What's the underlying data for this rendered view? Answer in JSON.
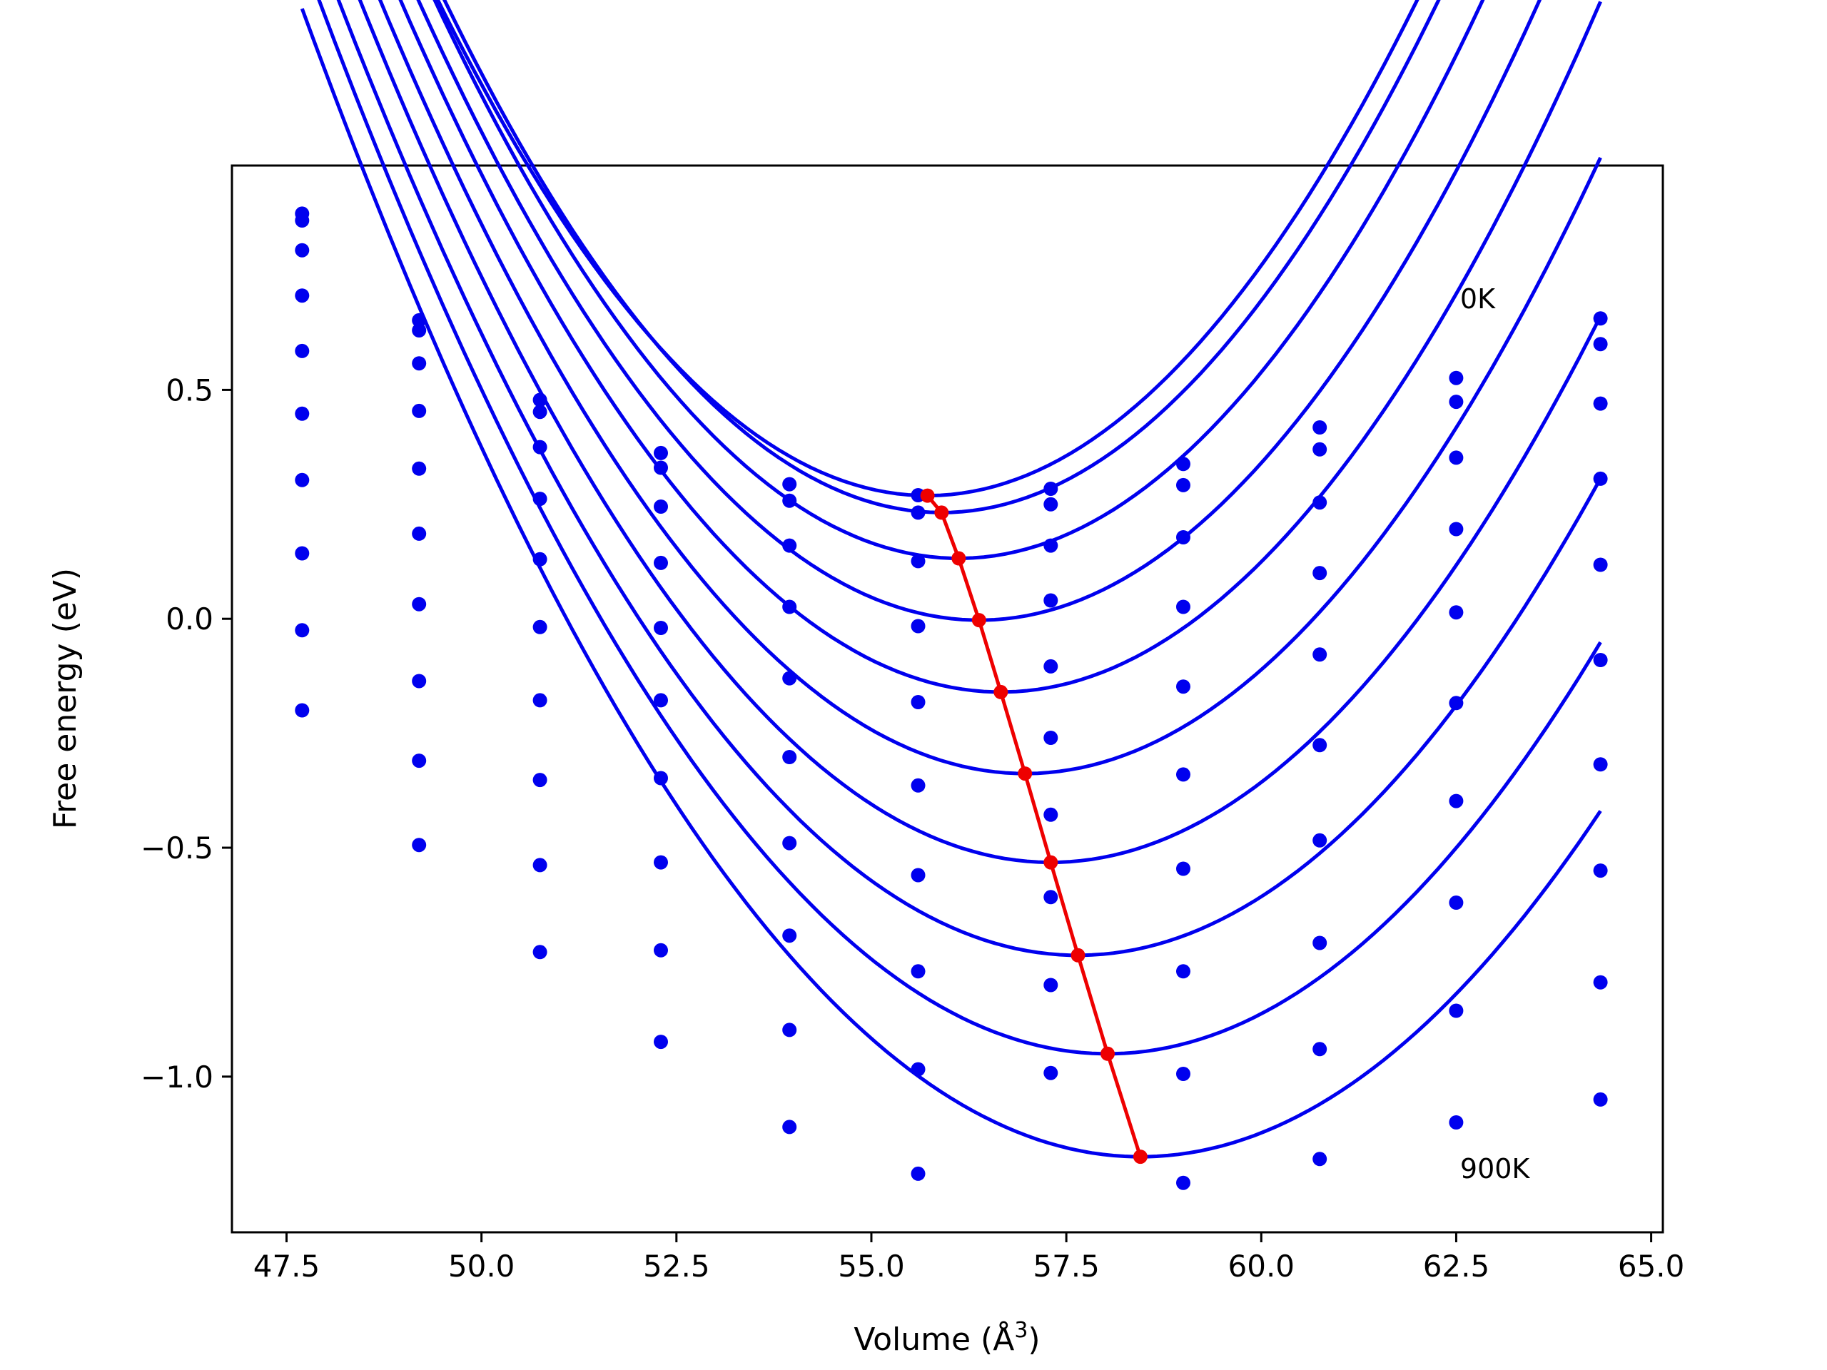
{
  "chart_data": {
    "type": "line",
    "title": "",
    "xlabel": "Volume (Å",
    "xlabel_sup": "3",
    "xlabel_close": ")",
    "ylabel": "Free energy (eV)",
    "xlim": [
      46.8,
      65.15
    ],
    "ylim": [
      -1.34,
      0.99
    ],
    "xticks": [
      {
        "value": 47.5,
        "label": "47.5"
      },
      {
        "value": 50.0,
        "label": "50.0"
      },
      {
        "value": 52.5,
        "label": "52.5"
      },
      {
        "value": 55.0,
        "label": "55.0"
      },
      {
        "value": 57.5,
        "label": "57.5"
      },
      {
        "value": 60.0,
        "label": "60.0"
      },
      {
        "value": 62.5,
        "label": "62.5"
      },
      {
        "value": 65.0,
        "label": "65.0"
      }
    ],
    "yticks": [
      {
        "value": 0.5,
        "label": "0.5"
      },
      {
        "value": 0.0,
        "label": "0.0"
      },
      {
        "value": -0.5,
        "label": "−0.5"
      },
      {
        "value": -1.0,
        "label": "−1.0"
      }
    ],
    "grid": false,
    "legend": "none",
    "annotations": [
      {
        "text": "0K",
        "x": 62.55,
        "y": 0.7
      },
      {
        "text": "900K",
        "x": 62.55,
        "y": -1.2
      }
    ],
    "volumes": [
      47.7,
      49.2,
      50.75,
      52.3,
      53.95,
      55.6,
      57.3,
      59.0,
      60.75,
      62.5,
      64.35
    ],
    "series": [
      {
        "points": [
          0.885,
          0.652,
          0.478,
          0.362,
          0.294,
          0.27,
          0.284,
          0.338,
          0.418,
          0.526,
          0.656
        ],
        "fit": {
          "a": 0.02745,
          "v0": 55.72,
          "e0": 0.269
        }
      },
      {
        "points": [
          0.87,
          0.63,
          0.452,
          0.33,
          0.258,
          0.232,
          0.25,
          0.292,
          0.37,
          0.474,
          0.6
        ],
        "fit": {
          "a": 0.02755,
          "v0": 55.9,
          "e0": 0.232
        }
      },
      {
        "points": [
          0.805,
          0.558,
          0.375,
          0.245,
          0.16,
          0.126,
          0.16,
          0.178,
          0.254,
          0.352,
          0.47
        ],
        "fit": {
          "a": 0.027,
          "v0": 56.12,
          "e0": 0.132
        }
      },
      {
        "points": [
          0.706,
          0.454,
          0.262,
          0.122,
          0.026,
          -0.016,
          0.04,
          0.026,
          0.1,
          0.196,
          0.306
        ],
        "fit": {
          "a": 0.0262,
          "v0": 56.38,
          "e0": -0.003
        }
      },
      {
        "points": [
          0.585,
          0.328,
          0.13,
          -0.02,
          -0.13,
          -0.182,
          -0.104,
          -0.148,
          -0.078,
          0.014,
          0.118
        ],
        "fit": {
          "a": 0.0255,
          "v0": 56.66,
          "e0": -0.16
        }
      },
      {
        "points": [
          0.448,
          0.186,
          -0.018,
          -0.178,
          -0.302,
          -0.364,
          -0.26,
          -0.34,
          -0.276,
          -0.184,
          -0.09
        ],
        "fit": {
          "a": 0.0247,
          "v0": 56.97,
          "e0": -0.338
        }
      },
      {
        "points": [
          0.303,
          0.032,
          -0.178,
          -0.348,
          -0.49,
          -0.56,
          -0.428,
          -0.546,
          -0.484,
          -0.398,
          -0.318
        ],
        "fit": {
          "a": 0.024,
          "v0": 57.3,
          "e0": -0.532
        }
      },
      {
        "points": [
          0.143,
          -0.136,
          -0.352,
          -0.532,
          -0.692,
          -0.77,
          -0.608,
          -0.77,
          -0.708,
          -0.62,
          -0.55
        ],
        "fit": {
          "a": 0.0232,
          "v0": 57.65,
          "e0": -0.735
        }
      },
      {
        "points": [
          -0.025,
          -0.31,
          -0.538,
          -0.724,
          -0.898,
          -0.984,
          -0.8,
          -0.994,
          -0.94,
          -0.856,
          -0.794
        ],
        "fit": {
          "a": 0.0225,
          "v0": 58.03,
          "e0": -0.95
        }
      },
      {
        "points": [
          -0.2,
          -0.494,
          -0.728,
          -0.924,
          -1.11,
          -1.212,
          -0.992,
          -1.232,
          -1.18,
          -1.1,
          -1.05
        ],
        "fit": {
          "a": 0.0217,
          "v0": 58.45,
          "e0": -1.175
        }
      }
    ],
    "minima_path": {
      "x": [
        55.72,
        55.9,
        56.12,
        56.38,
        56.66,
        56.97,
        57.3,
        57.65,
        58.03,
        58.45
      ],
      "y": [
        0.269,
        0.232,
        0.132,
        -0.003,
        -0.16,
        -0.338,
        -0.532,
        -0.735,
        -0.95,
        -1.175
      ]
    },
    "colors": {
      "curves": "#0000ee",
      "points": "#0000ee",
      "minima": "#ee0000",
      "axes": "#000000"
    }
  }
}
